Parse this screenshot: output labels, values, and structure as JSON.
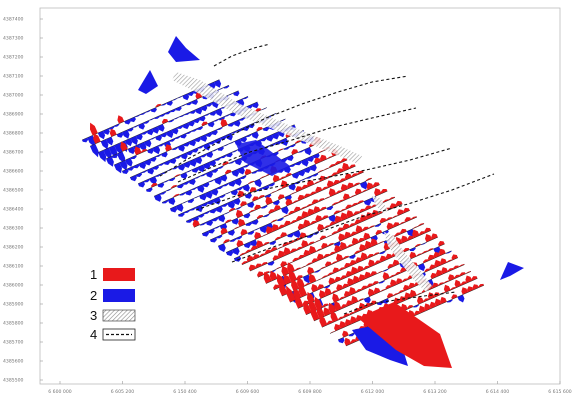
{
  "axes": {
    "y_ticks": [
      "4387400",
      "4387300",
      "4387200",
      "4387100",
      "4387000",
      "4386900",
      "4386800",
      "4386700",
      "4386600",
      "4386500",
      "4386400",
      "4386300",
      "4386200",
      "4386100",
      "4386000",
      "4385900",
      "4385800",
      "4385700",
      "4385600",
      "4385500"
    ],
    "x_ticks": [
      "6 600 000",
      "6 605 200",
      "6 150 400",
      "6 609 600",
      "6 609 800",
      "6 612 000",
      "6 613 200",
      "6 614 400",
      "6 615 600"
    ]
  },
  "legend": {
    "items": [
      {
        "label": "1",
        "kind": "swatch",
        "color": "#e8191b"
      },
      {
        "label": "2",
        "kind": "swatch",
        "color": "#1a1ae6"
      },
      {
        "label": "3",
        "kind": "hatch",
        "color": "#9a9a9a"
      },
      {
        "label": "4",
        "kind": "dashed",
        "color": "#111111"
      }
    ]
  },
  "colors": {
    "positive": "#e8191b",
    "negative": "#1a1ae6",
    "hatch": "#9a9a9a",
    "profile": "#222222"
  }
}
